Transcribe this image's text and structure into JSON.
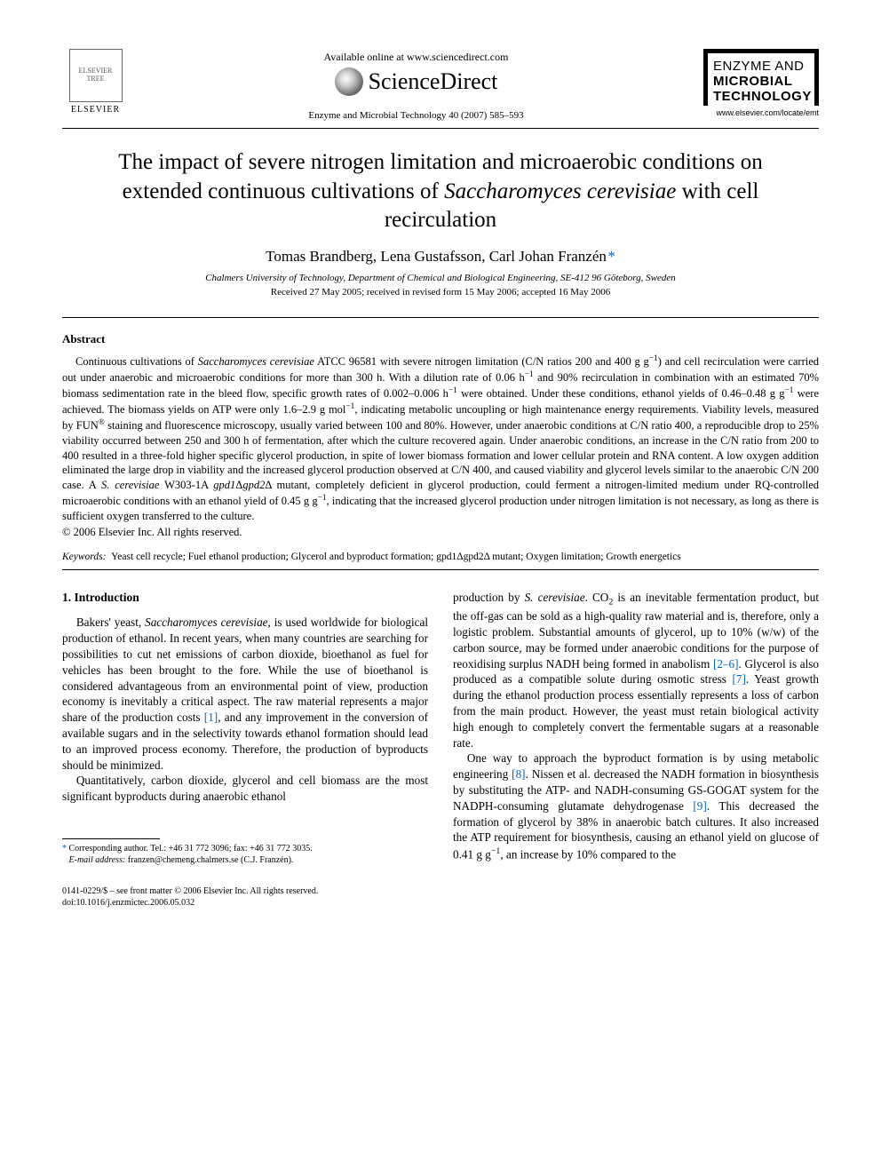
{
  "header": {
    "elsevier_label": "ELSEVIER",
    "available_online": "Available online at www.sciencedirect.com",
    "sciencedirect": "ScienceDirect",
    "journal_ref": "Enzyme and Microbial Technology 40 (2007) 585–593",
    "journal_logo": {
      "line1": "ENZYME AND",
      "line2": "MICROBIAL",
      "line3": "TECHNOLOGY",
      "url": "www.elsevier.com/locate/emt"
    }
  },
  "title": {
    "pre": "The impact of severe nitrogen limitation and microaerobic conditions on extended continuous cultivations of ",
    "italic": "Saccharomyces cerevisiae",
    "post": " with cell recirculation"
  },
  "authors": "Tomas Brandberg, Lena Gustafsson, Carl Johan Franzén",
  "author_star": "*",
  "affiliation": "Chalmers University of Technology, Department of Chemical and Biological Engineering, SE-412 96 Göteborg, Sweden",
  "dates": "Received 27 May 2005; received in revised form 15 May 2006; accepted 16 May 2006",
  "abstract": {
    "heading": "Abstract",
    "body_html": "Continuous cultivations of <span class=\"italic\">Saccharomyces cerevisiae</span> ATCC 96581 with severe nitrogen limitation (C/N ratios 200 and 400 g g<span class=\"sup\">−1</span>) and cell recirculation were carried out under anaerobic and microaerobic conditions for more than 300 h. With a dilution rate of 0.06 h<span class=\"sup\">−1</span> and 90% recirculation in combination with an estimated 70% biomass sedimentation rate in the bleed flow, specific growth rates of 0.002–0.006 h<span class=\"sup\">−1</span> were obtained. Under these conditions, ethanol yields of 0.46–0.48 g g<span class=\"sup\">−1</span> were achieved. The biomass yields on ATP were only 1.6–2.9 g mol<span class=\"sup\">−1</span>, indicating metabolic uncoupling or high maintenance energy requirements. Viability levels, measured by FUN<span class=\"sup\">®</span> staining and fluorescence microscopy, usually varied between 100 and 80%. However, under anaerobic conditions at C/N ratio 400, a reproducible drop to 25% viability occurred between 250 and 300 h of fermentation, after which the culture recovered again. Under anaerobic conditions, an increase in the C/N ratio from 200 to 400 resulted in a three-fold higher specific glycerol production, in spite of lower biomass formation and lower cellular protein and RNA content. A low oxygen addition eliminated the large drop in viability and the increased glycerol production observed at C/N 400, and caused viability and glycerol levels similar to the anaerobic C/N 200 case. A <span class=\"italic\">S. cerevisiae</span> W303-1A <span class=\"italic\">gpd1</span>Δ<span class=\"italic\">gpd2</span>Δ mutant, completely deficient in glycerol production, could ferment a nitrogen-limited medium under RQ-controlled microaerobic conditions with an ethanol yield of 0.45 g g<span class=\"sup\">−1</span>, indicating that the increased glycerol production under nitrogen limitation is not necessary, as long as there is sufficient oxygen transferred to the culture.",
    "copyright": "© 2006 Elsevier Inc. All rights reserved."
  },
  "keywords": {
    "label": "Keywords:",
    "values": "Yeast cell recycle; Fuel ethanol production; Glycerol and byproduct formation; gpd1Δgpd2Δ mutant; Oxygen limitation; Growth energetics"
  },
  "section1": {
    "heading": "1.  Introduction",
    "col1_p1_html": "Bakers' yeast, <span class=\"italic\">Saccharomyces cerevisiae</span>, is used worldwide for biological production of ethanol. In recent years, when many countries are searching for possibilities to cut net emissions of carbon dioxide, bioethanol as fuel for vehicles has been brought to the fore. While the use of bioethanol is considered advantageous from an environmental point of view, production economy is inevitably a critical aspect. The raw material represents a major share of the production costs <span class=\"cite\">[1]</span>, and any improvement in the conversion of available sugars and in the selectivity towards ethanol formation should lead to an improved process economy. Therefore, the production of byproducts should be minimized.",
    "col1_p2_html": "Quantitatively, carbon dioxide, glycerol and cell biomass are the most significant byproducts during anaerobic ethanol",
    "col2_p1_html": "production by <span class=\"italic\">S. cerevisiae</span>. CO<span class=\"sub\">2</span> is an inevitable fermentation product, but the off-gas can be sold as a high-quality raw material and is, therefore, only a logistic problem. Substantial amounts of glycerol, up to 10% (w/w) of the carbon source, may be formed under anaerobic conditions for the purpose of reoxidising surplus NADH being formed in anabolism <span class=\"cite\">[2–6]</span>. Glycerol is also produced as a compatible solute during osmotic stress <span class=\"cite\">[7]</span>. Yeast growth during the ethanol production process essentially represents a loss of carbon from the main product. However, the yeast must retain biological activity high enough to completely convert the fermentable sugars at a reasonable rate.",
    "col2_p2_html": "One way to approach the byproduct formation is by using metabolic engineering <span class=\"cite\">[8]</span>. Nissen et al. decreased the NADH formation in biosynthesis by substituting the ATP- and NADH-consuming GS-GOGAT system for the NADPH-consuming glutamate dehydrogenase <span class=\"cite\">[9]</span>. This decreased the formation of glycerol by 38% in anaerobic batch cultures. It also increased the ATP requirement for biosynthesis, causing an ethanol yield on glucose of 0.41 g g<span class=\"sup\">−1</span>, an increase by 10% compared to the"
  },
  "footnote": {
    "corr": "Corresponding author. Tel.: +46 31 772 3096; fax: +46 31 772 3035.",
    "email_label": "E-mail address:",
    "email": "franzen@chemeng.chalmers.se",
    "email_name": "(C.J. Franzén)."
  },
  "footer": {
    "line1": "0141-0229/$ – see front matter © 2006 Elsevier Inc. All rights reserved.",
    "line2": "doi:10.1016/j.enzmictec.2006.05.032"
  }
}
